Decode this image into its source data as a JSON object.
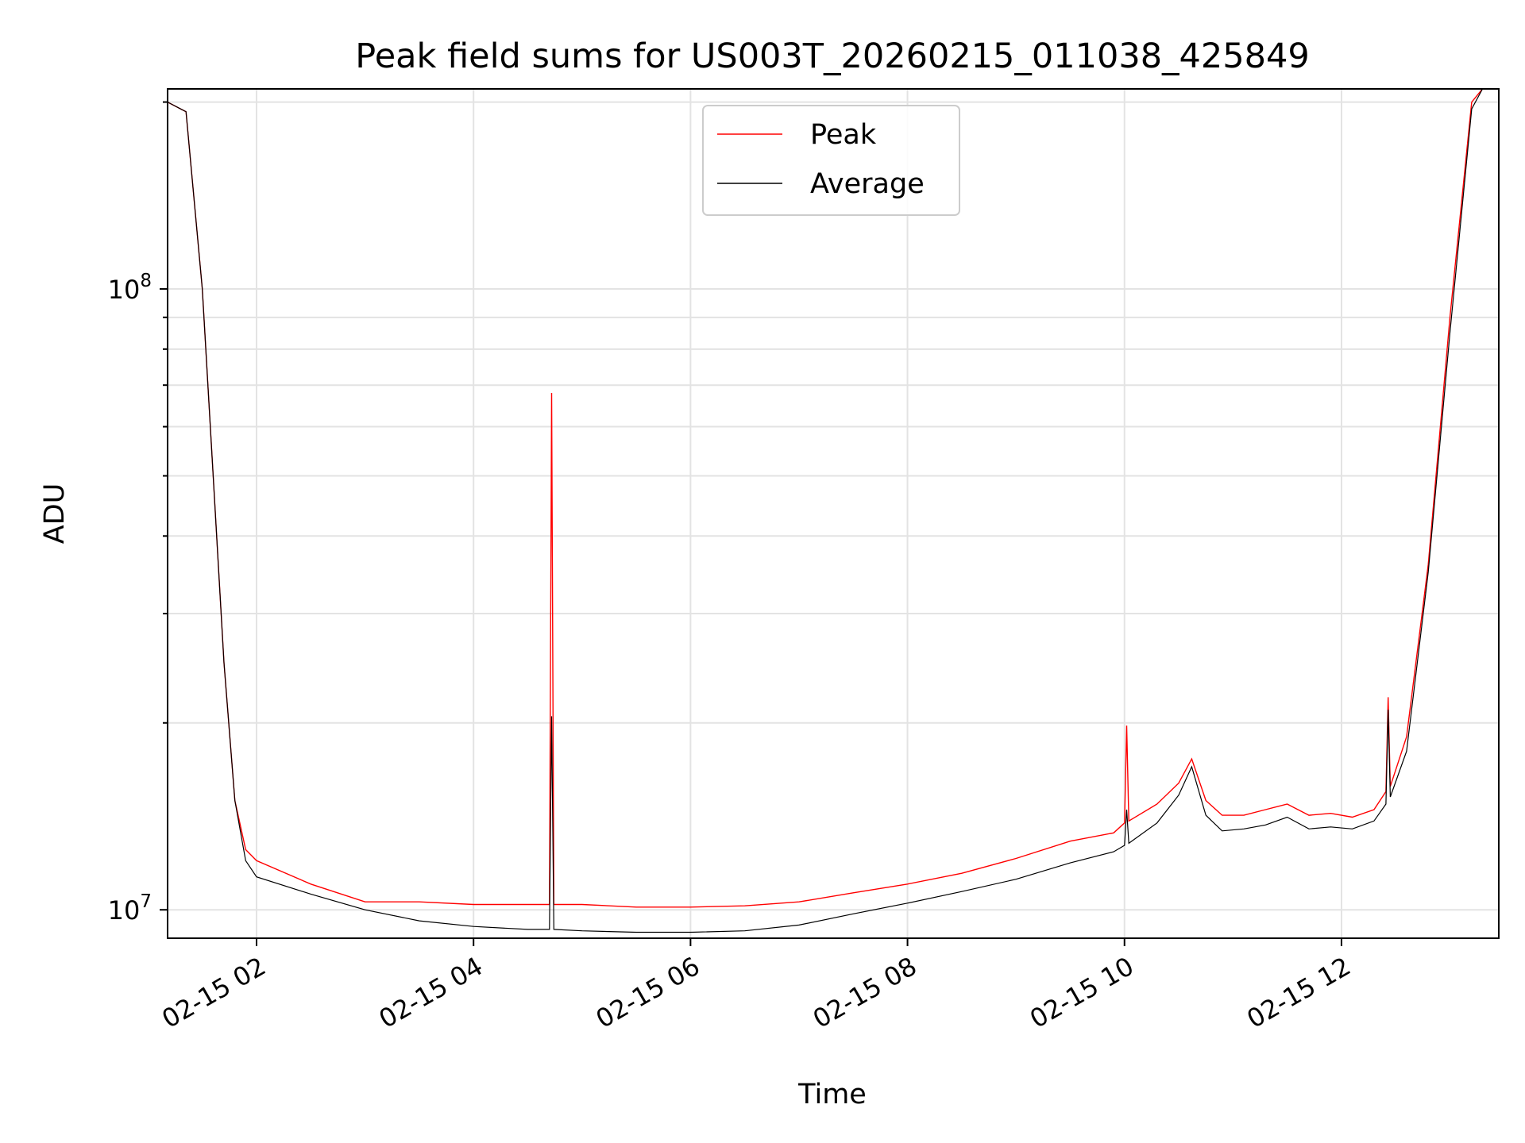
{
  "chart_data": {
    "type": "line",
    "title": "Peak field sums for US003T_20260215_011038_425849",
    "xlabel": "Time",
    "ylabel": "ADU",
    "yscale": "log",
    "grid": true,
    "legend_position": "upper-center",
    "xlim_hours": [
      1.18,
      13.45
    ],
    "ylim": [
      9000000,
      210000000
    ],
    "x_ticks": [
      {
        "hour": 2,
        "label": "02-15 02"
      },
      {
        "hour": 4,
        "label": "02-15 04"
      },
      {
        "hour": 6,
        "label": "02-15 06"
      },
      {
        "hour": 8,
        "label": "02-15 08"
      },
      {
        "hour": 10,
        "label": "02-15 10"
      },
      {
        "hour": 12,
        "label": "02-15 12"
      }
    ],
    "y_major_ticks": [
      {
        "value": 10000000,
        "base": "10",
        "exponent": "7"
      },
      {
        "value": 100000000,
        "base": "10",
        "exponent": "8"
      }
    ],
    "y_minor_ticks": [
      20000000,
      30000000,
      40000000,
      50000000,
      60000000,
      70000000,
      80000000,
      90000000,
      200000000
    ],
    "series": [
      {
        "name": "Peak",
        "color": "#ff0000",
        "x_hours": [
          1.18,
          1.3,
          1.35,
          1.5,
          1.6,
          1.7,
          1.8,
          1.9,
          2.0,
          2.5,
          3.0,
          3.5,
          4.0,
          4.5,
          4.7,
          4.72,
          4.74,
          5.0,
          5.5,
          6.0,
          6.5,
          7.0,
          7.5,
          8.0,
          8.5,
          9.0,
          9.5,
          9.9,
          10.0,
          10.02,
          10.04,
          10.3,
          10.5,
          10.62,
          10.75,
          10.9,
          11.1,
          11.3,
          11.5,
          11.7,
          11.9,
          12.1,
          12.3,
          12.41,
          12.43,
          12.45,
          12.6,
          12.8,
          13.0,
          13.2,
          13.3
        ],
        "values": [
          200000000,
          195000000,
          193000000,
          100000000,
          50000000,
          25000000,
          15000000,
          12500000,
          12000000,
          11000000,
          10300000,
          10300000,
          10200000,
          10200000,
          10200000,
          68000000,
          10200000,
          10200000,
          10100000,
          10100000,
          10150000,
          10300000,
          10650000,
          11000000,
          11450000,
          12100000,
          12900000,
          13300000,
          13800000,
          19800000,
          13900000,
          14800000,
          16000000,
          17500000,
          15000000,
          14200000,
          14200000,
          14500000,
          14800000,
          14200000,
          14300000,
          14100000,
          14500000,
          15500000,
          22000000,
          15800000,
          19000000,
          36000000,
          90000000,
          200000000,
          220000000
        ]
      },
      {
        "name": "Average",
        "color": "#000000",
        "x_hours": [
          1.18,
          1.3,
          1.35,
          1.5,
          1.6,
          1.7,
          1.8,
          1.9,
          2.0,
          2.5,
          3.0,
          3.5,
          4.0,
          4.5,
          4.7,
          4.72,
          4.74,
          5.0,
          5.5,
          6.0,
          6.5,
          7.0,
          7.5,
          8.0,
          8.5,
          9.0,
          9.5,
          9.9,
          10.0,
          10.02,
          10.04,
          10.3,
          10.5,
          10.62,
          10.75,
          10.9,
          11.1,
          11.3,
          11.5,
          11.7,
          11.9,
          12.1,
          12.3,
          12.41,
          12.43,
          12.45,
          12.6,
          12.8,
          13.0,
          13.2,
          13.3
        ],
        "values": [
          200000000,
          195000000,
          193000000,
          100000000,
          50000000,
          25000000,
          15000000,
          12000000,
          11300000,
          10600000,
          10000000,
          9600000,
          9400000,
          9300000,
          9300000,
          20500000,
          9300000,
          9250000,
          9200000,
          9200000,
          9250000,
          9450000,
          9850000,
          10250000,
          10700000,
          11200000,
          11900000,
          12400000,
          12700000,
          14500000,
          12800000,
          13800000,
          15300000,
          17000000,
          14200000,
          13400000,
          13500000,
          13700000,
          14100000,
          13500000,
          13600000,
          13500000,
          13900000,
          14800000,
          21000000,
          15200000,
          18000000,
          35000000,
          85000000,
          195000000,
          220000000
        ]
      }
    ]
  }
}
